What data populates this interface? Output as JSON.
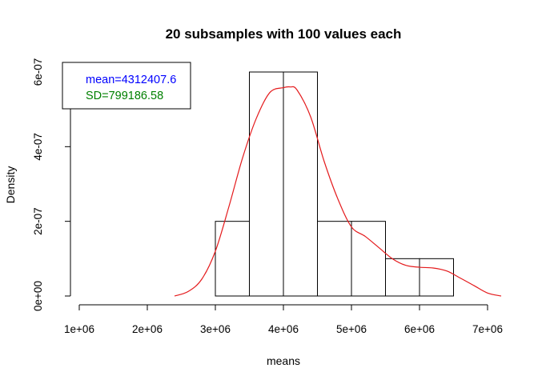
{
  "chart_data": {
    "type": "histogram",
    "title": "20 subsamples with 100 values each",
    "xlabel": "means",
    "ylabel": "Density",
    "xlim": [
      1000000,
      7000000
    ],
    "ylim": [
      0,
      6e-07
    ],
    "x_ticks": [
      {
        "value": 1000000,
        "label": "1e+06"
      },
      {
        "value": 2000000,
        "label": "2e+06"
      },
      {
        "value": 3000000,
        "label": "3e+06"
      },
      {
        "value": 4000000,
        "label": "4e+06"
      },
      {
        "value": 5000000,
        "label": "5e+06"
      },
      {
        "value": 6000000,
        "label": "6e+06"
      },
      {
        "value": 7000000,
        "label": "7e+06"
      }
    ],
    "y_ticks": [
      {
        "value": 0,
        "label": "0e+00"
      },
      {
        "value": 2e-07,
        "label": "2e-07"
      },
      {
        "value": 4e-07,
        "label": "4e-07"
      },
      {
        "value": 6e-07,
        "label": "6e-07"
      }
    ],
    "bins": [
      {
        "x0": 3000000,
        "x1": 3500000,
        "density": 2e-07
      },
      {
        "x0": 3500000,
        "x1": 4000000,
        "density": 6e-07
      },
      {
        "x0": 4000000,
        "x1": 4500000,
        "density": 6e-07
      },
      {
        "x0": 4500000,
        "x1": 5000000,
        "density": 2e-07
      },
      {
        "x0": 5000000,
        "x1": 5500000,
        "density": 2e-07
      },
      {
        "x0": 5500000,
        "x1": 6000000,
        "density": 1e-07
      },
      {
        "x0": 6000000,
        "x1": 6500000,
        "density": 1e-07
      }
    ],
    "density_curve": {
      "color": "#e41a1c",
      "x": [
        2400000,
        2600000,
        2800000,
        3000000,
        3200000,
        3400000,
        3600000,
        3800000,
        4000000,
        4100000,
        4200000,
        4400000,
        4600000,
        4800000,
        5000000,
        5200000,
        5400000,
        5600000,
        5800000,
        6000000,
        6200000,
        6400000,
        6600000,
        6800000,
        7000000,
        7200000
      ],
      "y": [
        0,
        1.2e-08,
        4.5e-08,
        1.2e-07,
        2.4e-07,
        3.7e-07,
        4.75e-07,
        5.45e-07,
        5.58e-07,
        5.6e-07,
        5.52e-07,
        4.8e-07,
        3.6e-07,
        2.6e-07,
        1.85e-07,
        1.6e-07,
        1.3e-07,
        1e-07,
        8.2e-08,
        7.7e-08,
        7.5e-08,
        6.7e-08,
        4.8e-08,
        2.8e-08,
        8e-09,
        0
      ]
    },
    "legend": {
      "placement": "top-left",
      "entries": [
        {
          "text": "mean=4312407.6",
          "color": "#0000ff"
        },
        {
          "text": "SD=799186.58",
          "color": "#008000"
        }
      ]
    },
    "colors": {
      "bars_fill": "#ffffff",
      "bars_stroke": "#000000",
      "axis": "#000000"
    }
  }
}
